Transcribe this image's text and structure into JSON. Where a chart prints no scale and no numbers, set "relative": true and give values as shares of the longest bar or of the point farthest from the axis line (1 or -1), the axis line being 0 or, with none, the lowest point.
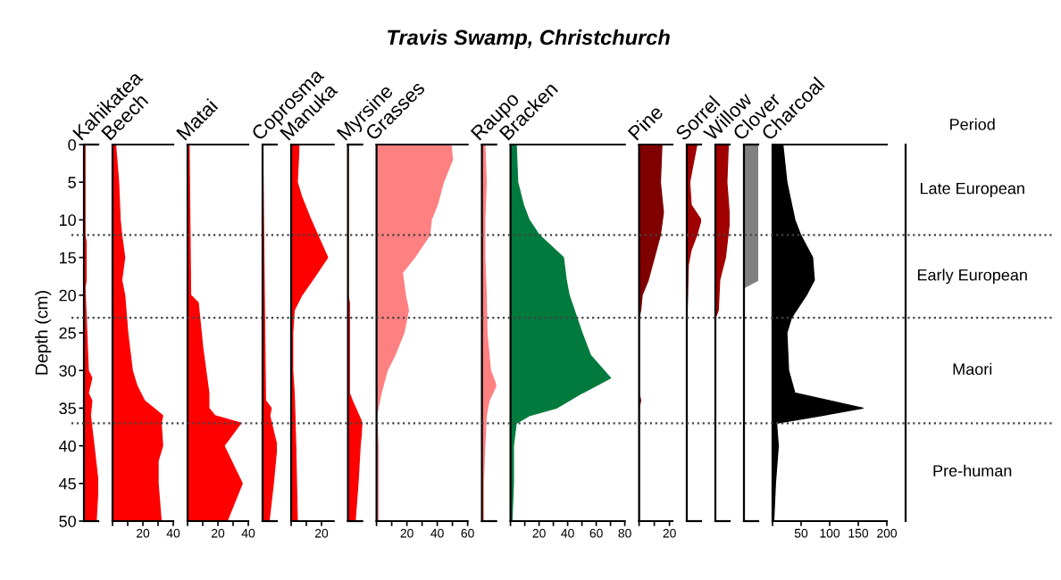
{
  "chart_data": [
    {
      "type": "area",
      "orientation": "horizontal",
      "relative": true,
      "xlabel": "Kahikatea",
      "ylabel": "Depth (cm)",
      "color": "#ff0000",
      "ylim": [
        50,
        0
      ],
      "yticks": [
        0,
        5,
        10,
        15,
        20,
        25,
        30,
        35,
        40,
        45,
        50
      ],
      "tick_labels": "y",
      "x": [
        0,
        12,
        13,
        18,
        19,
        30,
        31,
        33,
        34,
        36,
        40,
        45,
        50
      ],
      "values": [
        0.07,
        0.07,
        0.15,
        0.15,
        0.07,
        0.3,
        0.55,
        0.3,
        0.55,
        0.45,
        0.7,
        1,
        0.85
      ]
    },
    {
      "type": "area",
      "orientation": "horizontal",
      "xlabel": "Beech",
      "color": "#ff0000",
      "ylim": [
        50,
        0
      ],
      "xlim": [
        0,
        40
      ],
      "xticks": [
        {
          "value": 0,
          "label": null
        },
        {
          "value": 10,
          "label": null
        },
        20,
        {
          "value": 30,
          "label": null
        },
        40
      ],
      "tick_labels": "x",
      "x": [
        0,
        5,
        10,
        12,
        15,
        18,
        20,
        25,
        30,
        32,
        34,
        35,
        36,
        37,
        40,
        42,
        45,
        50
      ],
      "values": [
        2,
        4,
        5,
        6,
        8,
        6,
        8,
        10,
        13,
        16,
        21,
        27,
        33,
        32,
        33,
        30,
        30,
        32
      ]
    },
    {
      "type": "area",
      "orientation": "horizontal",
      "xlabel": "Matai",
      "color": "#ff0000",
      "ylim": [
        50,
        0
      ],
      "xlim": [
        0,
        40
      ],
      "xticks": [
        {
          "value": 0,
          "label": null
        },
        {
          "value": 10,
          "label": null
        },
        20,
        {
          "value": 30,
          "label": null
        },
        40
      ],
      "tick_labels": "x",
      "x": [
        0,
        20,
        21,
        25,
        27,
        30,
        33,
        35,
        36,
        37,
        40,
        45,
        50
      ],
      "values": [
        1,
        2,
        7,
        9,
        10,
        12,
        14,
        14,
        18,
        35,
        24,
        36,
        26
      ]
    },
    {
      "type": "area",
      "orientation": "horizontal",
      "relative": true,
      "xlabel": "Coprosma",
      "color": "#ff0000",
      "ylim": [
        50,
        0
      ],
      "tick_labels": false,
      "x": [
        0,
        34,
        35,
        36,
        40,
        45,
        50
      ],
      "values": [
        0,
        0.2,
        0.6,
        0.5,
        1,
        0.75,
        0.45
      ]
    },
    {
      "type": "area",
      "orientation": "horizontal",
      "xlabel": "Manuka",
      "color": "#ff0000",
      "ylim": [
        50,
        0
      ],
      "xlim": [
        0,
        28
      ],
      "xticks": [
        {
          "value": 0,
          "label": null
        },
        {
          "value": 10,
          "label": null
        },
        20
      ],
      "tick_labels": "x",
      "x": [
        0,
        1,
        5,
        7,
        10,
        15,
        18,
        20,
        22,
        25,
        30,
        33,
        40,
        50
      ],
      "values": [
        5,
        5,
        4,
        7,
        13,
        24,
        14,
        7,
        2,
        1,
        1,
        2,
        3,
        4
      ]
    },
    {
      "type": "area",
      "orientation": "horizontal",
      "relative": true,
      "xlabel": "Myrsine",
      "color": "#ff0000",
      "ylim": [
        50,
        0
      ],
      "tick_labels": false,
      "x": [
        0,
        20,
        21,
        28,
        33,
        34,
        37,
        40,
        45,
        50
      ],
      "values": [
        0,
        0,
        0.1,
        0.1,
        0.1,
        0.3,
        1,
        0.85,
        0.7,
        0.5
      ]
    },
    {
      "type": "area",
      "orientation": "horizontal",
      "xlabel": "Grasses",
      "color": "#ff8080",
      "ylim": [
        50,
        0
      ],
      "xlim": [
        0,
        60
      ],
      "xticks": [
        {
          "value": 0,
          "label": null
        },
        {
          "value": 10,
          "label": null
        },
        20,
        {
          "value": 30,
          "label": null
        },
        40,
        {
          "value": 50,
          "label": null
        },
        60
      ],
      "tick_labels": "x",
      "x": [
        0,
        2,
        5,
        8,
        10,
        12,
        15,
        17,
        20,
        22,
        25,
        28,
        30,
        33,
        35,
        36,
        40,
        48,
        50
      ],
      "values": [
        49,
        50,
        44,
        40,
        36,
        35,
        25,
        17,
        19,
        21,
        18,
        12,
        7,
        3,
        1,
        0,
        1,
        1,
        1
      ]
    },
    {
      "type": "area",
      "orientation": "horizontal",
      "relative": true,
      "title": "Travis Swamp, Christchurch",
      "xlabel": "Raupo",
      "color": "#ff8080",
      "ylim": [
        50,
        0
      ],
      "tick_labels": false,
      "x": [
        0,
        5,
        10,
        15,
        20,
        25,
        30,
        32,
        34,
        36,
        40,
        45,
        50
      ],
      "values": [
        0.2,
        0.3,
        0.2,
        0.2,
        0.3,
        0.35,
        0.6,
        1,
        0.5,
        0.3,
        0.2,
        0.1,
        0.1
      ]
    },
    {
      "type": "area",
      "orientation": "horizontal",
      "xlabel": "Bracken",
      "color": "#007a3d",
      "ylim": [
        50,
        0
      ],
      "xlim": [
        0,
        80
      ],
      "xticks": [
        {
          "value": 0,
          "label": null
        },
        {
          "value": 10,
          "label": null
        },
        20,
        {
          "value": 30,
          "label": null
        },
        40,
        {
          "value": 50,
          "label": null
        },
        60,
        {
          "value": 70,
          "label": null
        },
        80
      ],
      "tick_labels": "x",
      "x": [
        0,
        5,
        8,
        10,
        12,
        15,
        18,
        20,
        25,
        28,
        31,
        33,
        35,
        36,
        37,
        40,
        45,
        50
      ],
      "values": [
        4,
        5,
        9,
        13,
        20,
        37,
        39,
        41,
        50,
        56,
        70,
        50,
        32,
        13,
        4,
        2,
        2,
        1
      ]
    },
    {
      "type": "area",
      "orientation": "horizontal",
      "xlabel": "Pine",
      "color": "#800000",
      "ylim": [
        50,
        0
      ],
      "xlim": [
        0,
        22
      ],
      "xticks": [
        {
          "value": 0,
          "label": null
        },
        {
          "value": 10,
          "label": null
        },
        20
      ],
      "tick_labels": "x",
      "x": [
        0,
        5,
        9,
        12,
        15,
        18,
        20,
        22,
        23,
        33,
        34,
        35,
        50
      ],
      "values": [
        15,
        14,
        16,
        14,
        10,
        6,
        2,
        1,
        0,
        0,
        1,
        0,
        0
      ]
    },
    {
      "type": "area",
      "orientation": "horizontal",
      "relative": true,
      "xlabel": "Sorrel",
      "color": "#a00000",
      "ylim": [
        50,
        0
      ],
      "tick_labels": false,
      "x": [
        0,
        2,
        5,
        8,
        10,
        12,
        14,
        16,
        20,
        23,
        50
      ],
      "values": [
        0.7,
        0.5,
        0.2,
        0.3,
        1,
        0.7,
        0.3,
        0.1,
        0.05,
        0,
        0
      ]
    },
    {
      "type": "area",
      "orientation": "horizontal",
      "relative": true,
      "xlabel": "Willow",
      "color": "#a00000",
      "ylim": [
        50,
        0
      ],
      "tick_labels": false,
      "x": [
        0,
        5,
        10,
        15,
        18,
        22,
        23,
        50
      ],
      "values": [
        0.9,
        0.8,
        1,
        0.7,
        0.3,
        0.2,
        0,
        0
      ]
    },
    {
      "type": "area",
      "orientation": "horizontal",
      "relative": true,
      "xlabel": "Clover",
      "color": "#808080",
      "ylim": [
        50,
        0
      ],
      "tick_labels": false,
      "x": [
        0,
        18,
        19,
        50
      ],
      "values": [
        1,
        1,
        0,
        0
      ]
    },
    {
      "type": "area",
      "orientation": "horizontal",
      "xlabel": "Charcoal",
      "color": "#000000",
      "ylim": [
        50,
        0
      ],
      "xlim": [
        0,
        200
      ],
      "xticks": [
        {
          "value": 0,
          "label": null
        },
        50,
        100,
        150,
        200
      ],
      "tick_labels": "x",
      "x": [
        0,
        5,
        10,
        12,
        15,
        18,
        20,
        23,
        25,
        30,
        33,
        35,
        36,
        37,
        40,
        45,
        50
      ],
      "values": [
        18,
        25,
        39,
        49,
        70,
        73,
        59,
        33,
        25,
        28,
        39,
        158,
        85,
        7,
        10,
        5,
        2
      ],
      "annotations": [
        "Period",
        "Late European",
        "Early European",
        "Maori",
        "Pre-human"
      ],
      "ref_lines": [
        {
          "axis": "y",
          "value": 12,
          "line_style": "dotted"
        },
        {
          "axis": "y",
          "value": 23,
          "line_style": "dotted"
        },
        {
          "axis": "y",
          "value": 37,
          "line_style": "dotted"
        }
      ]
    }
  ]
}
